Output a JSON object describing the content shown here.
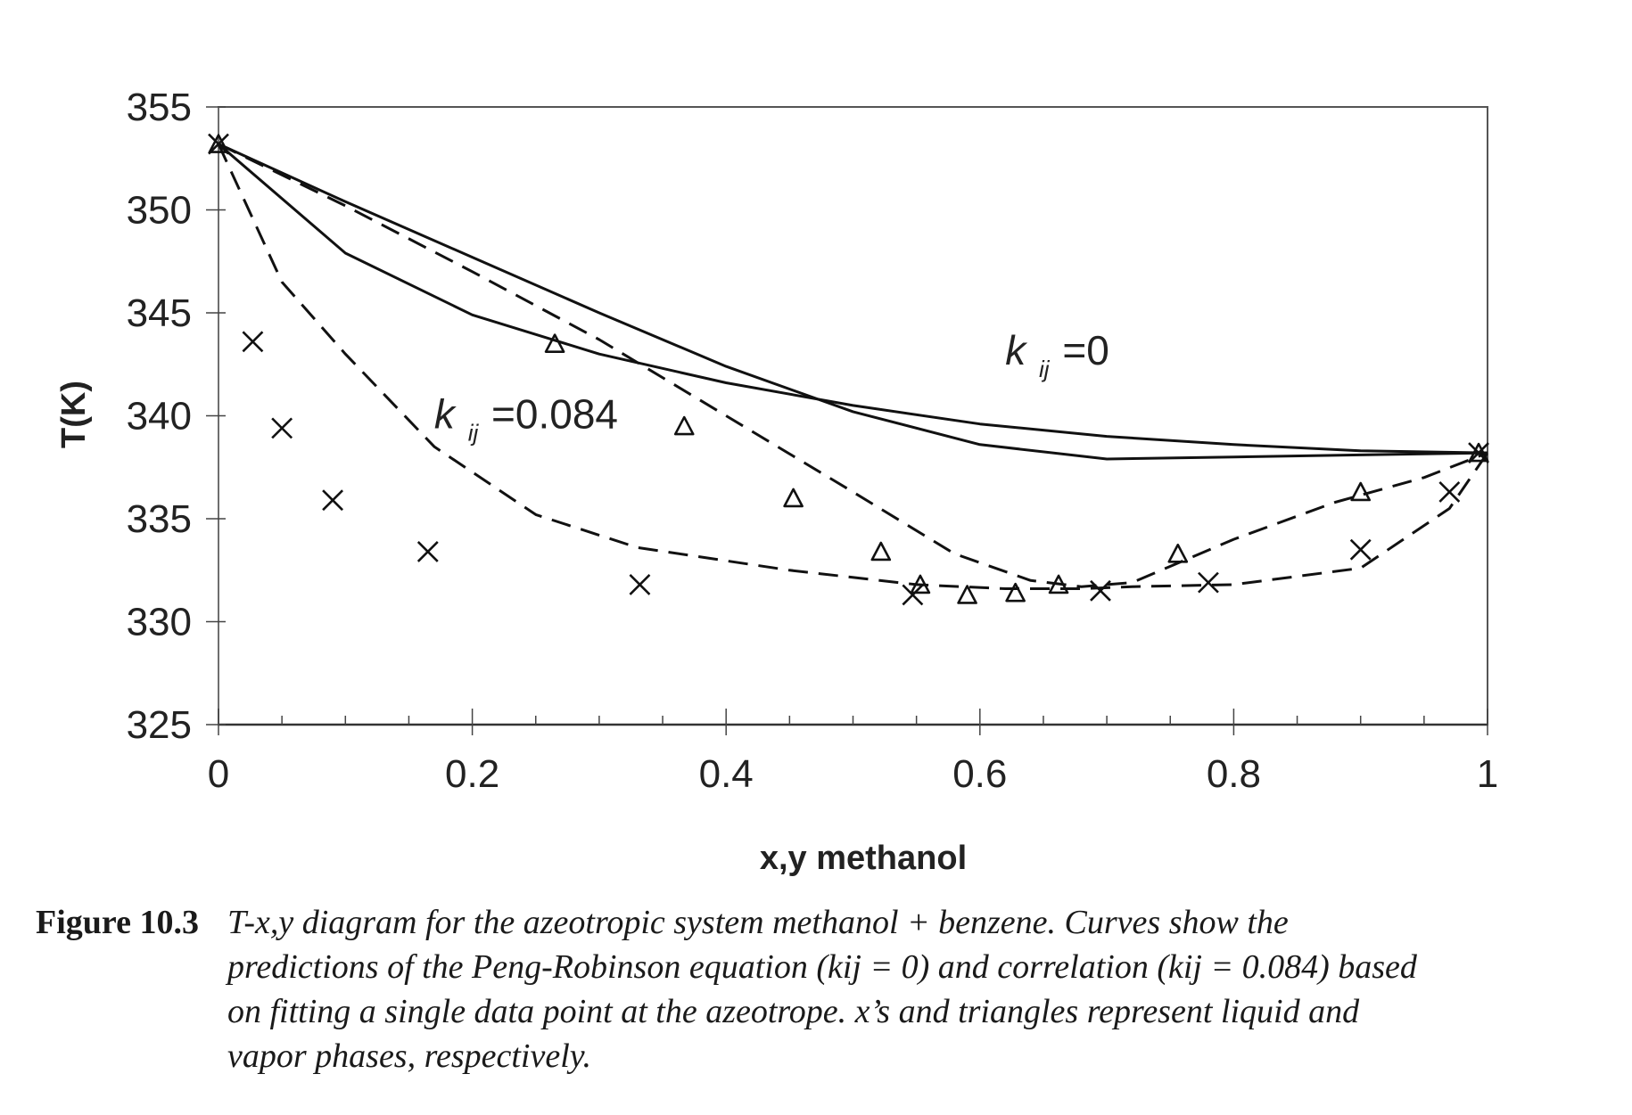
{
  "chart_data": {
    "type": "scatter",
    "xlabel": "x,y methanol",
    "ylabel": "T(K)",
    "xlim": [
      0,
      1
    ],
    "ylim": [
      325,
      355
    ],
    "x_ticks": [
      0,
      0.2,
      0.4,
      0.6,
      0.8,
      1
    ],
    "x_tick_labels": [
      "0",
      "0.2",
      "0.4",
      "0.6",
      "0.8",
      "1"
    ],
    "y_ticks": [
      325,
      330,
      335,
      340,
      345,
      350,
      355
    ],
    "y_tick_labels": [
      "325",
      "330",
      "335",
      "340",
      "345",
      "350",
      "355"
    ],
    "grid": false,
    "series": [
      {
        "style": "solid",
        "x": [
          0,
          0.1,
          0.2,
          0.3,
          0.4,
          0.5,
          0.6,
          0.7,
          0.8,
          0.9,
          1.0
        ],
        "values": [
          353.2,
          350.4,
          347.7,
          345.0,
          342.4,
          340.2,
          338.6,
          337.9,
          338.0,
          338.1,
          338.2
        ]
      },
      {
        "style": "solid",
        "x": [
          0,
          0.1,
          0.2,
          0.3,
          0.4,
          0.5,
          0.6,
          0.7,
          0.8,
          0.9,
          1.0
        ],
        "values": [
          353.2,
          347.9,
          344.9,
          343.0,
          341.6,
          340.5,
          339.6,
          339.0,
          338.6,
          338.3,
          338.2
        ]
      },
      {
        "style": "dashed",
        "x": [
          0,
          0.05,
          0.1,
          0.17,
          0.25,
          0.33,
          0.45,
          0.55,
          0.62,
          0.68,
          0.72,
          0.8,
          0.9,
          0.97,
          1.0
        ],
        "values": [
          353.2,
          346.5,
          343.0,
          338.5,
          335.2,
          333.6,
          332.5,
          331.8,
          331.6,
          331.6,
          331.7,
          331.8,
          332.6,
          335.5,
          338.2
        ]
      },
      {
        "style": "dashed",
        "x": [
          0,
          0.1,
          0.2,
          0.3,
          0.4,
          0.5,
          0.58,
          0.64,
          0.68,
          0.72,
          0.8,
          0.88,
          0.95,
          1.0
        ],
        "values": [
          353.2,
          350.2,
          347.0,
          343.7,
          340.0,
          336.3,
          333.3,
          332.0,
          331.7,
          331.9,
          334.0,
          335.8,
          337.0,
          338.2
        ]
      },
      {
        "marker": "x",
        "x": [
          0,
          0.027,
          0.05,
          0.09,
          0.165,
          0.332,
          0.547,
          0.695,
          0.78,
          0.9,
          0.97,
          0.993
        ],
        "values": [
          353.2,
          343.6,
          339.4,
          335.9,
          333.4,
          331.8,
          331.3,
          331.5,
          331.9,
          333.5,
          336.3,
          338.2
        ]
      },
      {
        "marker": "triangle",
        "x": [
          0,
          0.265,
          0.367,
          0.453,
          0.522,
          0.553,
          0.59,
          0.628,
          0.662,
          0.756,
          0.9,
          0.993
        ],
        "values": [
          353.2,
          343.5,
          339.5,
          336.0,
          333.4,
          331.8,
          331.3,
          331.4,
          331.8,
          333.3,
          336.3,
          338.2
        ]
      }
    ],
    "annotations": [
      {
        "text_main": "k",
        "text_sub": "ij",
        "text_rest": "=0",
        "x": 0.62,
        "y": 342.5
      },
      {
        "text_main": "k",
        "text_sub": "ij",
        "text_rest": "=0.084",
        "x": 0.17,
        "y": 339.4
      }
    ]
  },
  "caption": {
    "figure_number": "Figure 10.3",
    "text": "T-x,y diagram for the azeotropic system methanol + benzene. Curves show the predictions of the Peng-Robinson equation (kij = 0) and correlation (kij = 0.084) based on fitting a single data point at the azeotrope. x’s and triangles represent liquid and vapor phases, respectively."
  }
}
